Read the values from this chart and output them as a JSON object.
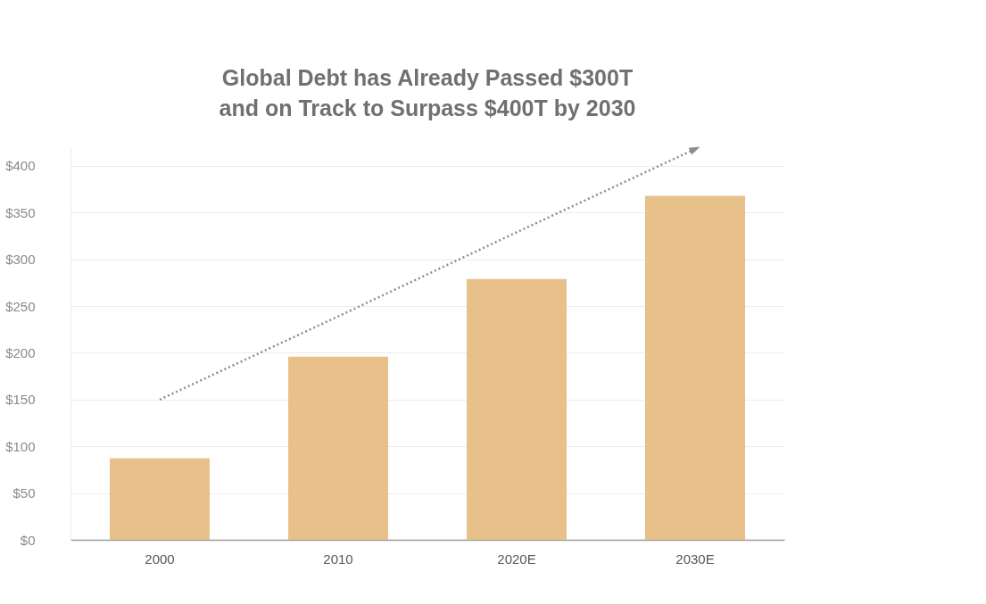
{
  "chart_data": {
    "type": "bar",
    "title": [
      "Global Debt has Already Passed $300T",
      "and on Track to Surpass $400T by 2030"
    ],
    "categories": [
      "2000",
      "2010",
      "2020E",
      "2030E"
    ],
    "series": [
      {
        "color": "#e8c08a",
        "values": [
          87,
          196,
          279,
          368
        ]
      },
      {
        "type": "line",
        "color": "#8c8c8c",
        "values": [
          150,
          239,
          329,
          418
        ],
        "line_style": "dotted"
      }
    ],
    "ylim": [
      0,
      420
    ],
    "yticks": [
      {
        "value": 0,
        "label": "$0"
      },
      {
        "value": 50,
        "label": "$50"
      },
      {
        "value": 100,
        "label": "$100"
      },
      {
        "value": 150,
        "label": "$150"
      },
      {
        "value": 200,
        "label": "$200"
      },
      {
        "value": 250,
        "label": "$250"
      },
      {
        "value": 300,
        "label": "$300"
      },
      {
        "value": 350,
        "label": "$350"
      },
      {
        "value": 400,
        "label": "$400"
      }
    ],
    "grid": "y"
  }
}
